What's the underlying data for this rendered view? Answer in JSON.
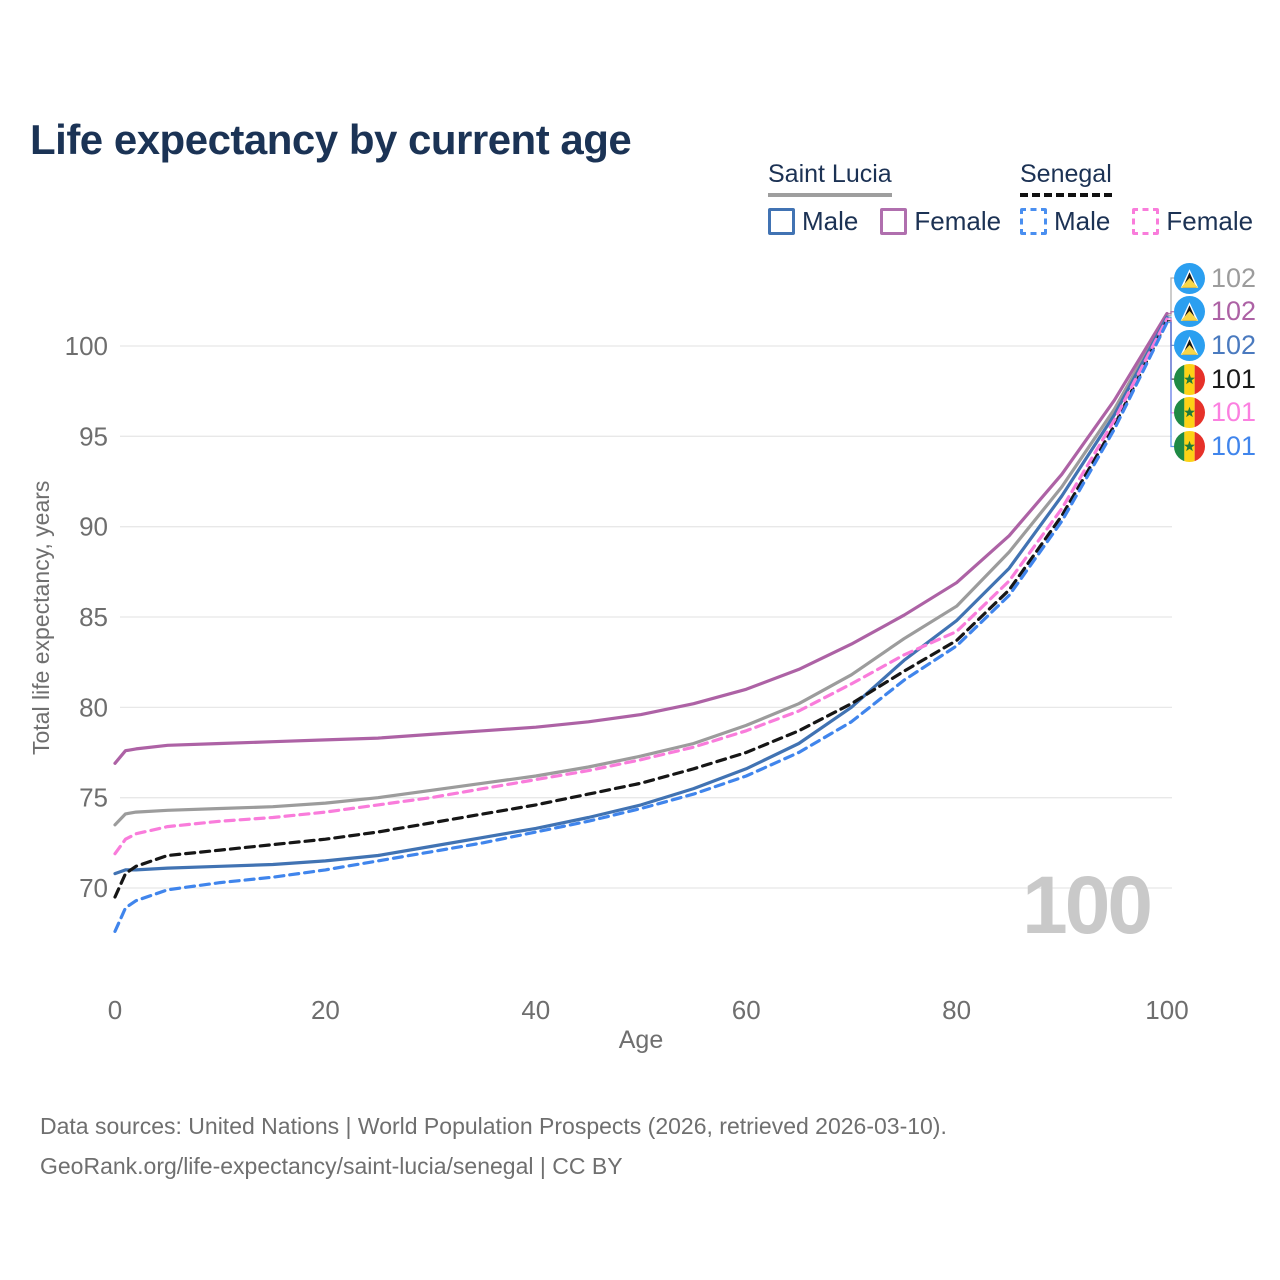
{
  "title": "Life expectancy by current age",
  "legend": {
    "groups": [
      {
        "country": "Saint Lucia",
        "underline": {
          "style": "solid",
          "color": "#9e9e9e"
        },
        "items": [
          {
            "label": "Male",
            "color": "#4173b3",
            "box_style": "solid"
          },
          {
            "label": "Female",
            "color": "#b06fae",
            "box_style": "solid"
          }
        ]
      },
      {
        "country": "Senegal",
        "underline": {
          "style": "dashed",
          "color": "#111111"
        },
        "items": [
          {
            "label": "Male",
            "color": "#4a8ff0",
            "box_style": "dashed"
          },
          {
            "label": "Female",
            "color": "#f97cdb",
            "box_style": "dashed"
          }
        ]
      }
    ]
  },
  "chart_data": {
    "type": "line",
    "title": "Life expectancy by current age",
    "xlabel": "Age",
    "ylabel": "Total life expectancy, years",
    "grid": true,
    "legend_position": "top-right",
    "x_ticks": [
      0,
      20,
      40,
      60,
      80,
      100
    ],
    "y_ticks": [
      70,
      75,
      80,
      85,
      90,
      95,
      100
    ],
    "xlim": [
      0,
      100
    ],
    "ylim": [
      66,
      103
    ],
    "watermark": "100",
    "x": [
      0,
      1,
      2,
      5,
      10,
      15,
      20,
      25,
      30,
      35,
      40,
      45,
      50,
      55,
      60,
      65,
      70,
      75,
      80,
      85,
      90,
      95,
      100
    ],
    "series": [
      {
        "id": "saint-lucia-total",
        "name": "Saint Lucia — Total",
        "country": "Saint Lucia",
        "sex": "Total",
        "color": "#9c9c9c",
        "dash": "solid",
        "values": [
          73.5,
          74.1,
          74.2,
          74.3,
          74.4,
          74.5,
          74.7,
          75.0,
          75.4,
          75.8,
          76.2,
          76.7,
          77.3,
          78.0,
          79.0,
          80.2,
          81.8,
          83.8,
          85.6,
          88.6,
          92.2,
          96.5,
          101.7
        ]
      },
      {
        "id": "saint-lucia-female",
        "name": "Saint Lucia — Female",
        "country": "Saint Lucia",
        "sex": "Female",
        "color": "#ad62a5",
        "dash": "solid",
        "values": [
          76.9,
          77.6,
          77.7,
          77.9,
          78.0,
          78.1,
          78.2,
          78.3,
          78.5,
          78.7,
          78.9,
          79.2,
          79.6,
          80.2,
          81.0,
          82.1,
          83.5,
          85.1,
          86.9,
          89.5,
          92.9,
          97.0,
          101.8
        ]
      },
      {
        "id": "saint-lucia-male",
        "name": "Saint Lucia — Male",
        "country": "Saint Lucia",
        "sex": "Male",
        "color": "#4173b3",
        "dash": "solid",
        "values": [
          70.8,
          71.0,
          71.0,
          71.1,
          71.2,
          71.3,
          71.5,
          71.8,
          72.3,
          72.8,
          73.3,
          73.9,
          74.6,
          75.5,
          76.6,
          78.0,
          80.0,
          82.6,
          84.8,
          87.7,
          91.7,
          96.2,
          101.6
        ]
      },
      {
        "id": "senegal-total",
        "name": "Senegal — Total",
        "country": "Senegal",
        "sex": "Total",
        "color": "#161616",
        "dash": "dashed",
        "values": [
          69.5,
          70.8,
          71.2,
          71.8,
          72.1,
          72.4,
          72.7,
          73.1,
          73.6,
          74.1,
          74.6,
          75.2,
          75.8,
          76.6,
          77.5,
          78.7,
          80.2,
          82.0,
          83.7,
          86.5,
          90.6,
          95.6,
          101.4
        ]
      },
      {
        "id": "senegal-female",
        "name": "Senegal — Female",
        "country": "Senegal",
        "sex": "Female",
        "color": "#f97cdb",
        "dash": "dashed",
        "values": [
          71.9,
          72.7,
          73.0,
          73.4,
          73.7,
          73.9,
          74.2,
          74.6,
          75.0,
          75.5,
          76.0,
          76.5,
          77.1,
          77.8,
          78.7,
          79.8,
          81.3,
          82.9,
          84.2,
          87.0,
          91.0,
          95.9,
          101.5
        ]
      },
      {
        "id": "senegal-male",
        "name": "Senegal — Male",
        "country": "Senegal",
        "sex": "Male",
        "color": "#4085ec",
        "dash": "dashed",
        "values": [
          67.6,
          68.9,
          69.3,
          69.9,
          70.3,
          70.6,
          71.0,
          71.5,
          72.0,
          72.5,
          73.1,
          73.7,
          74.4,
          75.2,
          76.2,
          77.5,
          79.2,
          81.5,
          83.4,
          86.2,
          90.3,
          95.4,
          101.3
        ]
      }
    ],
    "end_labels": [
      {
        "flag": "saint-lucia-flag-icon",
        "value": "102",
        "color": "#9c9c9c",
        "series": "saint-lucia-total"
      },
      {
        "flag": "saint-lucia-flag-icon",
        "value": "102",
        "color": "#ad62a5",
        "series": "saint-lucia-female"
      },
      {
        "flag": "saint-lucia-flag-icon",
        "value": "102",
        "color": "#4a7abf",
        "series": "saint-lucia-male"
      },
      {
        "flag": "senegal-flag-icon",
        "value": "101",
        "color": "#1a1a1a",
        "series": "senegal-total"
      },
      {
        "flag": "senegal-flag-icon",
        "value": "101",
        "color": "#fb80e0",
        "series": "senegal-female"
      },
      {
        "flag": "senegal-flag-icon",
        "value": "101",
        "color": "#4085ec",
        "series": "senegal-male"
      }
    ]
  },
  "footer": {
    "line1": "Data sources: United Nations | World Population Prospects (2026, retrieved 2026-03-10).",
    "line2": "GeoRank.org/life-expectancy/saint-lucia/senegal | CC BY"
  },
  "colors": {
    "title": "#1b3355",
    "axis_text": "#6e6e6e",
    "grid": "#e8e8e8",
    "watermark": "#c9c9c9",
    "background": "#ffffff"
  }
}
